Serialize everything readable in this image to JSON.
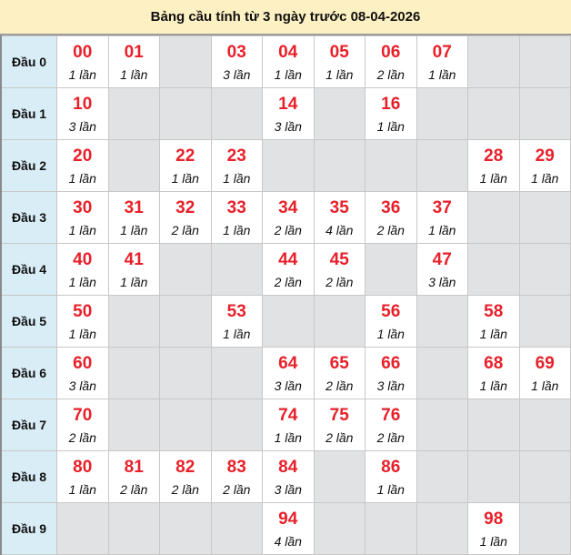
{
  "title": "Bảng cầu tính từ 3 ngày trước 08-04-2026",
  "colors": {
    "number": "#e8202a",
    "header_bg": "#fdf0c2",
    "row_head_bg": "#d9edf7",
    "empty_bg": "#e1e2e4"
  },
  "rows": [
    {
      "label": "Đầu 0",
      "cells": [
        {
          "n": "00",
          "c": "1 lần"
        },
        {
          "n": "01",
          "c": "1 lần"
        },
        null,
        {
          "n": "03",
          "c": "3 lần"
        },
        {
          "n": "04",
          "c": "1 lần"
        },
        {
          "n": "05",
          "c": "1 lần"
        },
        {
          "n": "06",
          "c": "2 lần"
        },
        {
          "n": "07",
          "c": "1 lần"
        },
        null,
        null
      ]
    },
    {
      "label": "Đầu 1",
      "cells": [
        {
          "n": "10",
          "c": "3 lần"
        },
        null,
        null,
        null,
        {
          "n": "14",
          "c": "3 lần"
        },
        null,
        {
          "n": "16",
          "c": "1 lần"
        },
        null,
        null,
        null
      ]
    },
    {
      "label": "Đầu 2",
      "cells": [
        {
          "n": "20",
          "c": "1 lần"
        },
        null,
        {
          "n": "22",
          "c": "1 lần"
        },
        {
          "n": "23",
          "c": "1 lần"
        },
        null,
        null,
        null,
        null,
        {
          "n": "28",
          "c": "1 lần"
        },
        {
          "n": "29",
          "c": "1 lần"
        }
      ]
    },
    {
      "label": "Đầu 3",
      "cells": [
        {
          "n": "30",
          "c": "1 lần"
        },
        {
          "n": "31",
          "c": "1 lần"
        },
        {
          "n": "32",
          "c": "2 lần"
        },
        {
          "n": "33",
          "c": "1 lần"
        },
        {
          "n": "34",
          "c": "2 lần"
        },
        {
          "n": "35",
          "c": "4 lần"
        },
        {
          "n": "36",
          "c": "2 lần"
        },
        {
          "n": "37",
          "c": "1 lần"
        },
        null,
        null
      ]
    },
    {
      "label": "Đầu 4",
      "cells": [
        {
          "n": "40",
          "c": "1 lần"
        },
        {
          "n": "41",
          "c": "1 lần"
        },
        null,
        null,
        {
          "n": "44",
          "c": "2 lần"
        },
        {
          "n": "45",
          "c": "2 lần"
        },
        null,
        {
          "n": "47",
          "c": "3 lần"
        },
        null,
        null
      ]
    },
    {
      "label": "Đầu 5",
      "cells": [
        {
          "n": "50",
          "c": "1 lần"
        },
        null,
        null,
        {
          "n": "53",
          "c": "1 lần"
        },
        null,
        null,
        {
          "n": "56",
          "c": "1 lần"
        },
        null,
        {
          "n": "58",
          "c": "1 lần"
        },
        null
      ]
    },
    {
      "label": "Đầu 6",
      "cells": [
        {
          "n": "60",
          "c": "3 lần"
        },
        null,
        null,
        null,
        {
          "n": "64",
          "c": "3 lần"
        },
        {
          "n": "65",
          "c": "2 lần"
        },
        {
          "n": "66",
          "c": "3 lần"
        },
        null,
        {
          "n": "68",
          "c": "1 lần"
        },
        {
          "n": "69",
          "c": "1 lần"
        }
      ]
    },
    {
      "label": "Đầu 7",
      "cells": [
        {
          "n": "70",
          "c": "2 lần"
        },
        null,
        null,
        null,
        {
          "n": "74",
          "c": "1 lần"
        },
        {
          "n": "75",
          "c": "2 lần"
        },
        {
          "n": "76",
          "c": "2 lần"
        },
        null,
        null,
        null
      ]
    },
    {
      "label": "Đầu 8",
      "cells": [
        {
          "n": "80",
          "c": "1 lần"
        },
        {
          "n": "81",
          "c": "2 lần"
        },
        {
          "n": "82",
          "c": "2 lần"
        },
        {
          "n": "83",
          "c": "2 lần"
        },
        {
          "n": "84",
          "c": "3 lần"
        },
        null,
        {
          "n": "86",
          "c": "1 lần"
        },
        null,
        null,
        null
      ]
    },
    {
      "label": "Đầu 9",
      "cells": [
        null,
        null,
        null,
        null,
        {
          "n": "94",
          "c": "4 lần"
        },
        null,
        null,
        null,
        {
          "n": "98",
          "c": "1 lần"
        },
        null
      ]
    }
  ]
}
